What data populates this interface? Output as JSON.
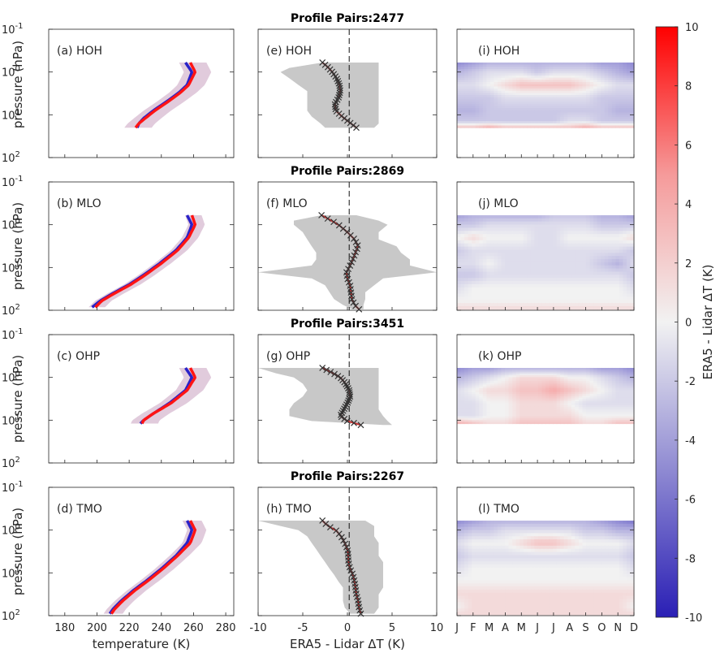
{
  "chart_data": {
    "type": "line",
    "layout": "4 rows x 3 columns of panels with shared colorbar",
    "colorbar": {
      "label": "ERA5 - Lidar ΔT (K)",
      "range": [
        -10,
        10
      ],
      "ticks": [
        "10",
        "8",
        "6",
        "4",
        "2",
        "0",
        "-2",
        "-4",
        "-6",
        "-8",
        "-10"
      ],
      "colors": {
        "low": "#2a1fb5",
        "mid": "#f2f2f2",
        "high": "#ff0000"
      }
    },
    "y_axis": {
      "label": "pressure (hPa)",
      "scale": "log",
      "reversed": true,
      "range": [
        0.1,
        100
      ],
      "tick_labels": [
        {
          "base": "10",
          "exp": "-1"
        },
        {
          "base": "10",
          "exp": "0"
        },
        {
          "base": "10",
          "exp": "1"
        },
        {
          "base": "10",
          "exp": "2"
        }
      ]
    },
    "col_a": {
      "xlabel": "temperature (K)",
      "xlim": [
        170,
        285
      ],
      "xticks": [
        "180",
        "200",
        "220",
        "240",
        "260",
        "280"
      ]
    },
    "col_b": {
      "xlabel": "ERA5 - Lidar ΔT (K)",
      "xlim": [
        -10,
        10
      ],
      "xticks": [
        "-10",
        "-5",
        "0",
        "5",
        "10"
      ]
    },
    "col_c": {
      "xticks": [
        "J",
        "F",
        "M",
        "A",
        "M",
        "J",
        "J",
        "A",
        "S",
        "O",
        "N",
        "D"
      ]
    },
    "rows": [
      {
        "title": "Profile Pairs:2477",
        "panel_labels": [
          "(a) HOH",
          "(e) HOH",
          "(i) HOH"
        ],
        "temperature": {
          "pressure": [
            0.6,
            1.0,
            2.0,
            3.0,
            5.0,
            8.0,
            12.0,
            16.0,
            20.0
          ],
          "lidar": [
            255,
            259,
            256,
            251,
            243,
            235,
            229,
            226,
            225
          ],
          "era5": [
            258,
            261,
            257,
            252,
            244,
            236,
            230,
            226,
            224
          ],
          "spread": 10
        },
        "diff": {
          "pressure": [
            0.6,
            0.8,
            1.0,
            1.4,
            2.0,
            2.8,
            4.0,
            5.6,
            8.0,
            11.0,
            16.0,
            20.0
          ],
          "mean": [
            -2.8,
            -2.1,
            -1.7,
            -1.2,
            -0.9,
            -0.8,
            -1.0,
            -1.4,
            -1.3,
            -0.6,
            0.4,
            1.0
          ],
          "lo": [
            -2.8,
            -6.5,
            -7.5,
            -6.5,
            -5.5,
            -4.5,
            -4.5,
            -4.5,
            -4.5,
            -4.0,
            -3.0,
            -2.5
          ],
          "hi": [
            3.5,
            3.5,
            3.5,
            3.5,
            3.5,
            3.5,
            3.5,
            3.5,
            3.5,
            3.5,
            3.5,
            3.0
          ]
        },
        "season": {
          "pressure": [
            0.6,
            1.0,
            2.0,
            4.0,
            8.0,
            14.0,
            20.0
          ],
          "values": [
            [
              -5,
              -4,
              -3,
              -3,
              -3,
              -3,
              -3,
              -3,
              -3,
              -4,
              -4,
              -5
            ],
            [
              -3,
              -2,
              -1,
              -1,
              -1,
              -2,
              -1,
              -1,
              -1,
              -2,
              -3,
              -4
            ],
            [
              -1,
              -1,
              0,
              1,
              2,
              2,
              2,
              2,
              1,
              0,
              -1,
              -1
            ],
            [
              -2,
              -2,
              -2,
              -1,
              -1,
              -1,
              -1,
              -1,
              -1,
              -2,
              -2,
              -2
            ],
            [
              -3,
              -3,
              -2,
              -2,
              -2,
              -2,
              -2,
              -2,
              -2,
              -2,
              -3,
              -3
            ],
            [
              -2,
              -2,
              -2,
              -2,
              -2,
              -2,
              -2,
              -1,
              -1,
              -2,
              -2,
              -2
            ],
            [
              2,
              2,
              3,
              2,
              2,
              2,
              2,
              2,
              3,
              2,
              2,
              2
            ]
          ]
        }
      },
      {
        "title": "Profile Pairs:2869",
        "panel_labels": [
          "(b) MLO",
          "(f) MLO",
          "(j) MLO"
        ],
        "temperature": {
          "pressure": [
            0.6,
            1.0,
            2.0,
            4.0,
            8.0,
            15.0,
            25.0,
            40.0,
            60.0,
            85.0
          ],
          "lidar": [
            256,
            259,
            256,
            249,
            239,
            229,
            220,
            210,
            202,
            197
          ],
          "era5": [
            259,
            261,
            257,
            250,
            240,
            230,
            221,
            211,
            203,
            199
          ],
          "spread": 6
        },
        "diff": {
          "pressure": [
            0.6,
            0.8,
            1.0,
            1.5,
            2.2,
            3.2,
            4.5,
            6.5,
            9.0,
            13.0,
            18.0,
            26.0,
            38.0,
            55.0,
            75.0,
            95.0
          ],
          "mean": [
            -2.9,
            -1.8,
            -1.0,
            0.0,
            0.8,
            1.2,
            0.9,
            0.6,
            0.3,
            -0.1,
            0.0,
            0.3,
            0.4,
            0.5,
            0.8,
            1.3
          ],
          "lo": [
            -2.9,
            -6.0,
            -6.0,
            -5.0,
            -4.5,
            -4.0,
            -3.5,
            -3.5,
            -4.0,
            -10.0,
            -4.0,
            -2.5,
            -2.0,
            -1.5,
            -0.5,
            0.5
          ],
          "hi": [
            1.0,
            3.5,
            4.5,
            3.5,
            3.5,
            5.5,
            6.0,
            7.0,
            7.0,
            10.0,
            4.0,
            3.0,
            2.0,
            2.0,
            1.8,
            1.8
          ]
        },
        "season": {
          "pressure": [
            0.6,
            1.0,
            2.0,
            4.0,
            8.0,
            15.0,
            30.0,
            60.0,
            95.0
          ],
          "values": [
            [
              -4,
              -3,
              -3,
              -3,
              -3,
              -3,
              -2,
              -2,
              -2,
              -3,
              -3,
              -4
            ],
            [
              -2,
              -2,
              -1,
              -1,
              -1,
              -1,
              -1,
              -1,
              -1,
              -2,
              -2,
              -2
            ],
            [
              0,
              1,
              0,
              0,
              0,
              -1,
              -1,
              0,
              0,
              0,
              0,
              1
            ],
            [
              -2,
              -1,
              -1,
              -1,
              -1,
              -1,
              -1,
              -1,
              -1,
              -1,
              -1,
              -2
            ],
            [
              -1,
              -1,
              0,
              -1,
              -1,
              -1,
              -1,
              -1,
              -1,
              -2,
              -3,
              -1
            ],
            [
              -2,
              -2,
              -1,
              -1,
              -1,
              -1,
              -1,
              -1,
              -1,
              -1,
              -1,
              -2
            ],
            [
              -1,
              0,
              0,
              0,
              0,
              0,
              0,
              0,
              0,
              0,
              0,
              -1
            ],
            [
              0,
              0,
              0,
              0,
              0,
              0,
              0,
              0,
              0,
              0,
              0,
              0
            ],
            [
              1,
              1,
              1,
              1,
              1,
              1,
              1,
              1,
              1,
              1,
              1,
              1
            ]
          ]
        }
      },
      {
        "title": "Profile Pairs:3451",
        "panel_labels": [
          "(c) OHP",
          "(g) OHP",
          "(k) OHP"
        ],
        "temperature": {
          "pressure": [
            0.6,
            1.0,
            2.0,
            4.0,
            7.0,
            10.0,
            12.0
          ],
          "lidar": [
            255,
            259,
            255,
            245,
            235,
            229,
            227
          ],
          "era5": [
            258,
            261,
            256,
            246,
            235,
            229,
            228
          ],
          "spread": 10
        },
        "diff": {
          "pressure": [
            0.6,
            0.8,
            1.0,
            1.4,
            2.0,
            2.8,
            4.0,
            5.6,
            8.0,
            10.5,
            13.0
          ],
          "mean": [
            -2.8,
            -1.6,
            -0.8,
            -0.2,
            0.2,
            0.3,
            0.0,
            -0.4,
            -0.8,
            0.0,
            1.5
          ],
          "lo": [
            -10.0,
            -8.0,
            -6.0,
            -5.0,
            -4.5,
            -5.0,
            -6.0,
            -6.5,
            -6.5,
            -4.0,
            4.0
          ],
          "hi": [
            3.5,
            3.5,
            3.5,
            3.5,
            3.5,
            3.5,
            3.5,
            3.5,
            4.0,
            4.5,
            5.0
          ]
        },
        "season": {
          "pressure": [
            0.6,
            1.0,
            2.0,
            4.0,
            8.0,
            12.0
          ],
          "values": [
            [
              -5,
              -4,
              -4,
              -3,
              -3,
              -3,
              -3,
              -3,
              -3,
              -4,
              -4,
              -5
            ],
            [
              -3,
              -2,
              -1,
              0,
              1,
              1,
              1,
              0,
              0,
              -1,
              -2,
              -3
            ],
            [
              -1,
              0,
              1,
              1,
              2,
              2,
              3,
              2,
              1,
              0,
              -1,
              -1
            ],
            [
              -1,
              -1,
              0,
              0,
              1,
              1,
              1,
              0,
              -1,
              -1,
              -1,
              -1
            ],
            [
              -1,
              -1,
              0,
              0,
              1,
              1,
              1,
              1,
              0,
              0,
              0,
              0
            ],
            [
              3,
              2,
              1,
              1,
              2,
              2,
              2,
              2,
              1,
              1,
              2,
              2
            ]
          ]
        }
      },
      {
        "title": "Profile Pairs:2267",
        "panel_labels": [
          "(d) TMO",
          "(h) TMO",
          "(l) TMO"
        ],
        "temperature": {
          "pressure": [
            0.6,
            1.0,
            2.0,
            4.0,
            8.0,
            15.0,
            25.0,
            45.0,
            70.0,
            90.0
          ],
          "lidar": [
            256,
            259,
            256,
            249,
            240,
            231,
            223,
            215,
            210,
            208
          ],
          "era5": [
            258,
            261,
            258,
            250,
            241,
            232,
            224,
            216,
            211,
            209
          ],
          "spread": 7
        },
        "diff": {
          "pressure": [
            0.6,
            0.8,
            1.0,
            1.4,
            2.0,
            2.8,
            4.0,
            5.6,
            8.0,
            11.0,
            16.0,
            22.0,
            32.0,
            45.0,
            65.0,
            90.0
          ],
          "mean": [
            -2.8,
            -2.2,
            -1.3,
            -0.7,
            -0.3,
            0.0,
            0.1,
            0.1,
            0.3,
            0.6,
            0.8,
            0.9,
            1.0,
            1.2,
            1.3,
            1.5
          ],
          "lo": [
            -10.0,
            -7.5,
            -5.5,
            -4.5,
            -4.0,
            -3.5,
            -3.0,
            -2.5,
            -2.0,
            -1.5,
            -1.0,
            -0.5,
            -0.5,
            -0.5,
            -0.3,
            0.3
          ],
          "hi": [
            2.0,
            3.0,
            3.0,
            3.0,
            3.5,
            3.5,
            3.5,
            4.0,
            4.0,
            4.0,
            4.0,
            4.0,
            3.5,
            3.5,
            3.5,
            3.0
          ]
        },
        "season": {
          "pressure": [
            0.6,
            1.0,
            2.0,
            4.0,
            8.0,
            15.0,
            30.0,
            60.0,
            95.0
          ],
          "values": [
            [
              -5,
              -4,
              -3,
              -3,
              -3,
              -3,
              -3,
              -3,
              -3,
              -4,
              -5,
              -6
            ],
            [
              -3,
              -2,
              -2,
              -1,
              -1,
              -1,
              -1,
              -1,
              -2,
              -2,
              -3,
              -3
            ],
            [
              -1,
              0,
              0,
              0,
              1,
              2,
              2,
              1,
              0,
              0,
              0,
              -1
            ],
            [
              -2,
              -1,
              -1,
              -1,
              -1,
              -1,
              -1,
              -1,
              -1,
              -1,
              -1,
              -2
            ],
            [
              -1,
              0,
              0,
              0,
              0,
              0,
              0,
              0,
              0,
              0,
              0,
              -1
            ],
            [
              0,
              0,
              0,
              0,
              0,
              0,
              0,
              0,
              0,
              0,
              0,
              0
            ],
            [
              1,
              1,
              1,
              1,
              1,
              1,
              1,
              1,
              1,
              1,
              1,
              1
            ],
            [
              0,
              1,
              1,
              1,
              1,
              1,
              1,
              1,
              1,
              1,
              1,
              0
            ],
            [
              1,
              1,
              1,
              1,
              1,
              1,
              1,
              1,
              1,
              1,
              1,
              1
            ]
          ]
        }
      }
    ]
  }
}
